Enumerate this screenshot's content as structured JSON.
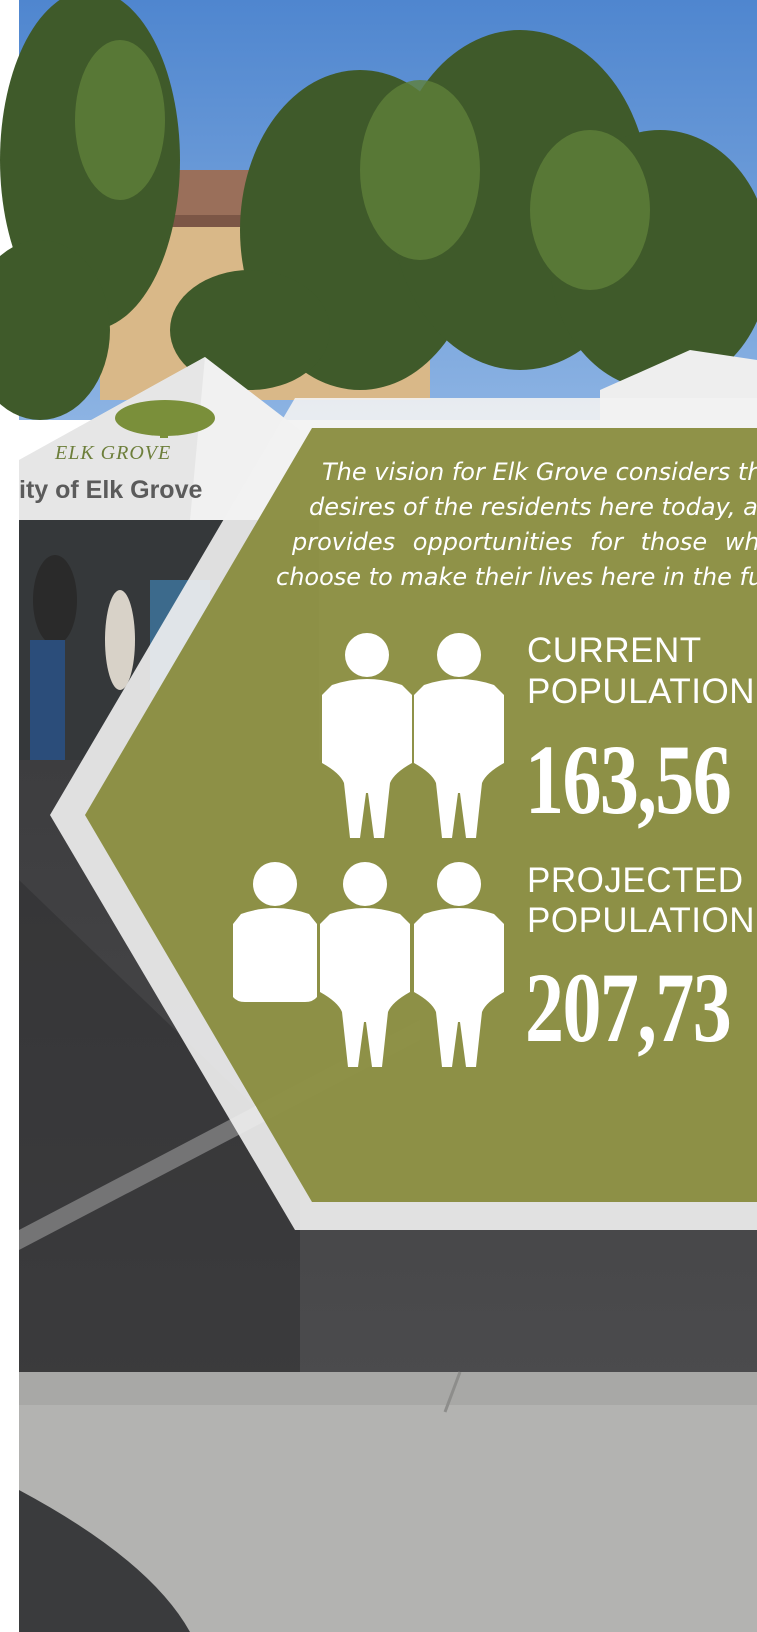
{
  "photo": {
    "tent_banner": "ity of Elk Grove",
    "logo_text": "ELK GROVE"
  },
  "panel": {
    "color": "#878a3a",
    "vision_lines": [
      "The vision for Elk Grove considers the",
      "desires of the residents here today, and",
      "provides opportunities for those who w",
      "choose to make their lives here in the futu"
    ],
    "current": {
      "label_line1": "CURRENT",
      "label_line2": "POPULATION",
      "value": "163,56",
      "people_icons": 2
    },
    "projected": {
      "label_line1": "PROJECTED",
      "label_line2": "POPULATION",
      "value": "207,73",
      "people_icons": 3
    }
  }
}
